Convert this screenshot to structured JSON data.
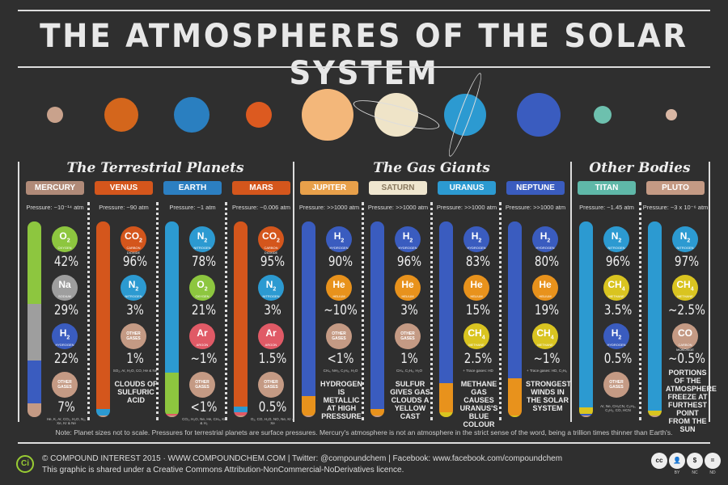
{
  "title": "THE ATMOSPHERES OF THE SOLAR SYSTEM",
  "sections": [
    "The Terrestrial Planets",
    "The Gas Giants",
    "Other Bodies"
  ],
  "columns": [
    {
      "name": "MERCURY",
      "color": "#b08a78",
      "pressure": "Pressure: ~10⁻¹⁴ atm",
      "gases": [
        {
          "sym": "O",
          "sub": "2",
          "label": "OXYGEN",
          "pct": "42%",
          "frac": 42,
          "color": "#8dc63f"
        },
        {
          "sym": "Na",
          "sub": "",
          "label": "SODIUM",
          "pct": "29%",
          "frac": 29,
          "color": "#9e9e9e"
        },
        {
          "sym": "H",
          "sub": "2",
          "label": "HYDROGEN",
          "pct": "22%",
          "frac": 22,
          "color": "#3a5cbf"
        },
        {
          "sym": "OTHER GASES",
          "sub": "",
          "label": "",
          "pct": "7%",
          "frac": 7,
          "color": "#c49a84"
        }
      ],
      "trace": "He, K, Ar, CO₂, H₂O, N₂, Xe, Kr & Ne",
      "note": ""
    },
    {
      "name": "VENUS",
      "color": "#d4561c",
      "pressure": "Pressure: ~90 atm",
      "gases": [
        {
          "sym": "CO",
          "sub": "2",
          "label": "CARBON DIOXIDE",
          "pct": "96%",
          "frac": 96,
          "color": "#d4561c"
        },
        {
          "sym": "N",
          "sub": "2",
          "label": "NITROGEN",
          "pct": "3%",
          "frac": 3,
          "color": "#2c9ad1"
        },
        {
          "sym": "OTHER GASES",
          "sub": "",
          "label": "",
          "pct": "1%",
          "frac": 1,
          "color": "#c49a84"
        }
      ],
      "trace": "SO₂, Ar, H₂O, CO, He & Ne",
      "note": "Clouds of sulfuric acid"
    },
    {
      "name": "EARTH",
      "color": "#2c7fc1",
      "pressure": "Pressure: ~1 atm",
      "gases": [
        {
          "sym": "N",
          "sub": "2",
          "label": "NITROGEN",
          "pct": "78%",
          "frac": 78,
          "color": "#2c9ad1"
        },
        {
          "sym": "O",
          "sub": "2",
          "label": "OXYGEN",
          "pct": "21%",
          "frac": 21,
          "color": "#8dc63f"
        },
        {
          "sym": "Ar",
          "sub": "",
          "label": "ARGON",
          "pct": "~1%",
          "frac": 1,
          "color": "#e05a66"
        },
        {
          "sym": "OTHER GASES",
          "sub": "",
          "label": "",
          "pct": "<1%",
          "frac": 0,
          "color": "#c49a84"
        }
      ],
      "trace": "CO₂, H₂O, Ne, He, CH₄, Kr & H₂",
      "note": ""
    },
    {
      "name": "MARS",
      "color": "#d4561c",
      "pressure": "Pressure: ~0.006 atm",
      "gases": [
        {
          "sym": "CO",
          "sub": "2",
          "label": "CARBON DIOXIDE",
          "pct": "95%",
          "frac": 95,
          "color": "#d4561c"
        },
        {
          "sym": "N",
          "sub": "2",
          "label": "NITROGEN",
          "pct": "3%",
          "frac": 3,
          "color": "#2c9ad1"
        },
        {
          "sym": "Ar",
          "sub": "",
          "label": "ARGON",
          "pct": "1.5%",
          "frac": 1.5,
          "color": "#e05a66"
        },
        {
          "sym": "OTHER GASES",
          "sub": "",
          "label": "",
          "pct": "0.5%",
          "frac": 0.5,
          "color": "#c49a84"
        }
      ],
      "trace": "O₂, CO, H₂O, NO, Ne, Kr & Xe",
      "note": ""
    },
    {
      "name": "JUPITER",
      "color": "#e8a04a",
      "pressure": "Pressure: >>1000 atm",
      "gases": [
        {
          "sym": "H",
          "sub": "2",
          "label": "HYDROGEN",
          "pct": "90%",
          "frac": 90,
          "color": "#3a5cbf"
        },
        {
          "sym": "He",
          "sub": "",
          "label": "HELIUM",
          "pct": "~10%",
          "frac": 10,
          "color": "#e8921c"
        },
        {
          "sym": "OTHER GASES",
          "sub": "",
          "label": "",
          "pct": "<1%",
          "frac": 0,
          "color": "#c49a84"
        }
      ],
      "trace": "CH₄, NH₃, C₂H₆, H₂O",
      "note": "Hydrogen is metallic at high pressure"
    },
    {
      "name": "SATURN",
      "color": "#efe6cf",
      "pressure": "Pressure: >>1000 atm",
      "gases": [
        {
          "sym": "H",
          "sub": "2",
          "label": "HYDROGEN",
          "pct": "96%",
          "frac": 96,
          "color": "#3a5cbf"
        },
        {
          "sym": "He",
          "sub": "",
          "label": "HELIUM",
          "pct": "3%",
          "frac": 3,
          "color": "#e8921c"
        },
        {
          "sym": "OTHER GASES",
          "sub": "",
          "label": "",
          "pct": "1%",
          "frac": 1,
          "color": "#c49a84"
        }
      ],
      "trace": "CH₄, C₂H₆, H₂O",
      "note": "Sulfur gives gas clouds a yellow cast"
    },
    {
      "name": "URANUS",
      "color": "#2c9ad1",
      "pressure": "Pressure: >>1000 atm",
      "gases": [
        {
          "sym": "H",
          "sub": "2",
          "label": "HYDROGEN",
          "pct": "83%",
          "frac": 83,
          "color": "#3a5cbf"
        },
        {
          "sym": "He",
          "sub": "",
          "label": "HELIUM",
          "pct": "15%",
          "frac": 15,
          "color": "#e8921c"
        },
        {
          "sym": "CH",
          "sub": "4",
          "label": "METHANE",
          "pct": "2.5%",
          "frac": 2.5,
          "color": "#d9c420"
        }
      ],
      "trace": "+ Trace gases: HD",
      "note": "Methane gas causes Uranus's blue colour"
    },
    {
      "name": "NEPTUNE",
      "color": "#3a5cbf",
      "pressure": "Pressure: >>1000 atm",
      "gases": [
        {
          "sym": "H",
          "sub": "2",
          "label": "HYDROGEN",
          "pct": "80%",
          "frac": 80,
          "color": "#3a5cbf"
        },
        {
          "sym": "He",
          "sub": "",
          "label": "HELIUM",
          "pct": "19%",
          "frac": 19,
          "color": "#e8921c"
        },
        {
          "sym": "CH",
          "sub": "4",
          "label": "METHANE",
          "pct": "~1%",
          "frac": 1,
          "color": "#d9c420"
        }
      ],
      "trace": "+ Trace gases: HD, C₂H₆",
      "note": "Strongest winds in the solar system"
    },
    {
      "name": "TITAN",
      "color": "#5fb8a8",
      "pressure": "Pressure: ~1.45 atm",
      "gases": [
        {
          "sym": "N",
          "sub": "2",
          "label": "NITROGEN",
          "pct": "96%",
          "frac": 96,
          "color": "#2c9ad1"
        },
        {
          "sym": "CH",
          "sub": "4",
          "label": "METHANE",
          "pct": "3.5%",
          "frac": 3.5,
          "color": "#d9c420"
        },
        {
          "sym": "H",
          "sub": "2",
          "label": "HYDROGEN",
          "pct": "0.5%",
          "frac": 0.5,
          "color": "#3a5cbf"
        },
        {
          "sym": "OTHER GASES",
          "sub": "",
          "label": "",
          "pct": "",
          "frac": 0,
          "color": "#c49a84"
        }
      ],
      "trace": "Ar, Ne, CH₃CN, C₃H₈, C₂H₂, CO, HCN",
      "note": ""
    },
    {
      "name": "PLUTO",
      "color": "#c49a84",
      "pressure": "Pressure: ~3 x 10⁻⁶ atm",
      "gases": [
        {
          "sym": "N",
          "sub": "2",
          "label": "NITROGEN",
          "pct": "97%",
          "frac": 97,
          "color": "#2c9ad1"
        },
        {
          "sym": "CH",
          "sub": "4",
          "label": "METHANE",
          "pct": "~2.5%",
          "frac": 2.5,
          "color": "#d9c420"
        },
        {
          "sym": "CO",
          "sub": "",
          "label": "CARBON MONOXIDE",
          "pct": "~0.5%",
          "frac": 0.5,
          "color": "#c49a84"
        }
      ],
      "trace": "",
      "note": "Portions of the atmosphere freeze at furthest point from the sun"
    }
  ],
  "footnote": "Note: Planet sizes not to scale. Pressures for terrestrial planets are surface pressures. Mercury's atmosphere is not an atmosphere in the strict sense of the word, being a trillion times thinner than Earth's.",
  "footer": {
    "line1": "© COMPOUND INTEREST 2015 · WWW.COMPOUNDCHEM.COM | Twitter: @compoundchem | Facebook: www.facebook.com/compoundchem",
    "line2": "This graphic is shared under a Creative Commons Attribution-NonCommercial-NoDerivatives licence.",
    "logo": "Ci",
    "cc": [
      "cc",
      "BY",
      "NC",
      "ND"
    ]
  }
}
